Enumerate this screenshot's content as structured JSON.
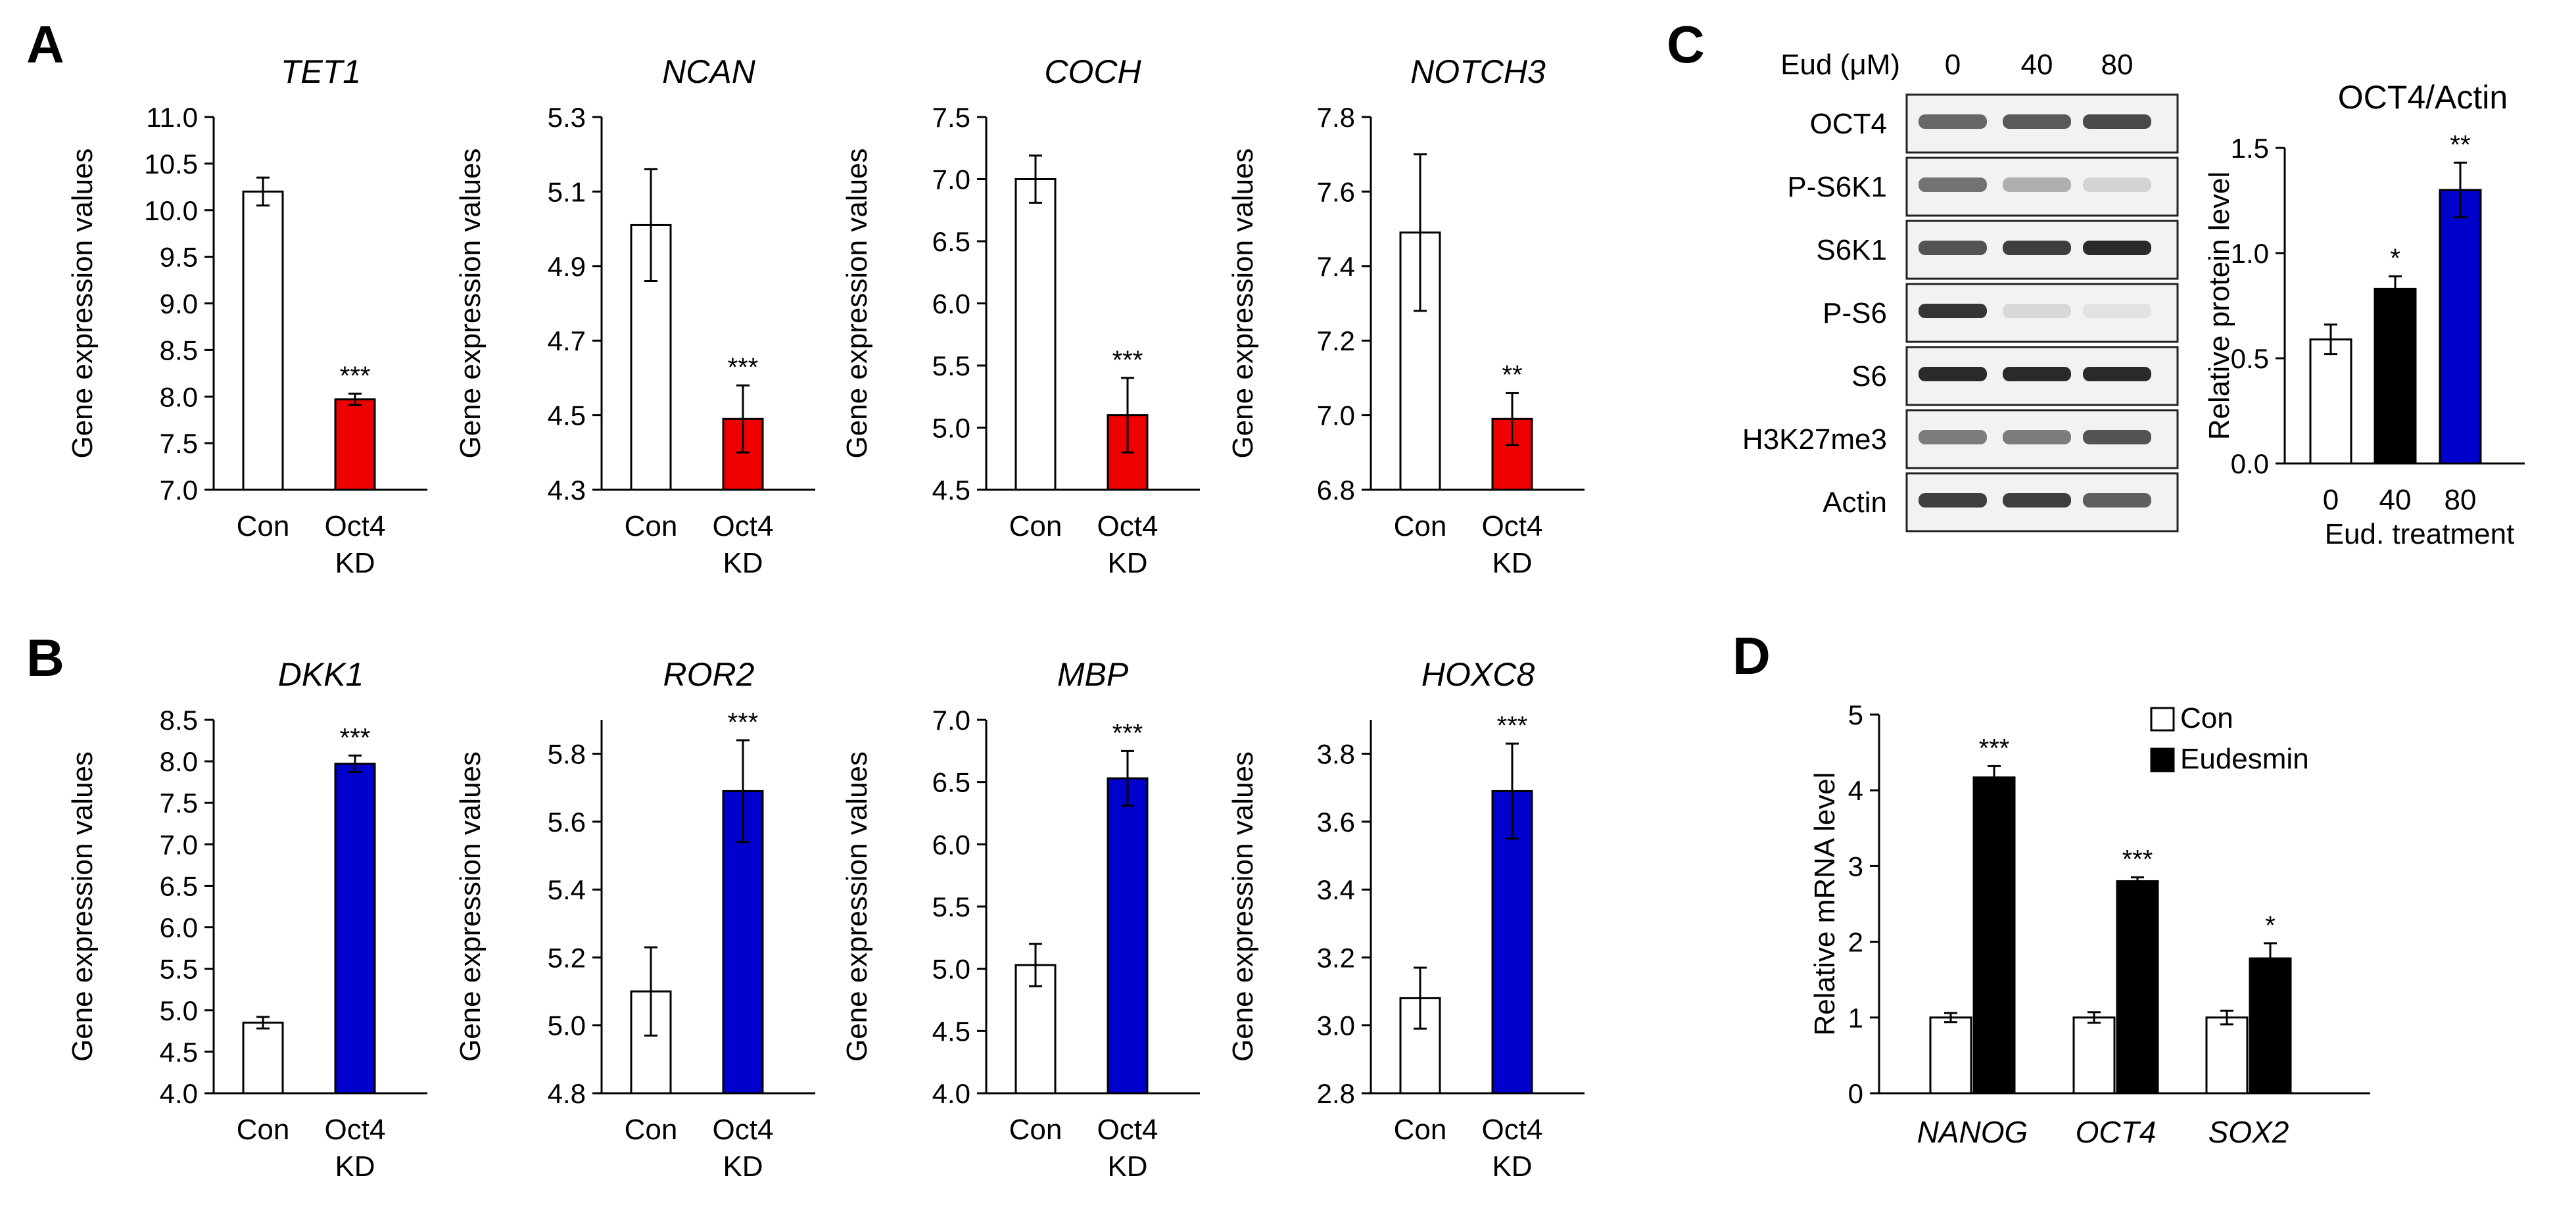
{
  "panels": {
    "A": "A",
    "B": "B",
    "C": "C",
    "D": "D"
  },
  "colors": {
    "red": "#ee0000",
    "blue": "#0000cc",
    "black": "#000000",
    "white": "#ffffff"
  },
  "chart_data": [
    {
      "id": "a1",
      "panel": "A",
      "type": "bar",
      "title": "TET1",
      "ylabel": "Gene expression values",
      "ylim": [
        7.0,
        11.0
      ],
      "yticks": [
        "7.0",
        "7.5",
        "8.0",
        "8.5",
        "9.0",
        "9.5",
        "10.0",
        "10.5",
        "11.0"
      ],
      "categories": [
        [
          "Con"
        ],
        [
          "Oct4",
          "KD"
        ]
      ],
      "values": [
        10.2,
        7.97
      ],
      "errors": [
        0.15,
        0.06
      ],
      "fills": [
        "white",
        "red"
      ],
      "sig": [
        "",
        "***"
      ]
    },
    {
      "id": "a2",
      "panel": "A",
      "type": "bar",
      "title": "NCAN",
      "ylabel": "Gene expression values",
      "ylim": [
        4.3,
        5.3
      ],
      "yticks": [
        "4.3",
        "4.5",
        "4.7",
        "4.9",
        "5.1",
        "5.3"
      ],
      "categories": [
        [
          "Con"
        ],
        [
          "Oct4",
          "KD"
        ]
      ],
      "values": [
        5.01,
        4.49
      ],
      "errors": [
        0.15,
        0.09
      ],
      "fills": [
        "white",
        "red"
      ],
      "sig": [
        "",
        "***"
      ]
    },
    {
      "id": "a3",
      "panel": "A",
      "type": "bar",
      "title": "COCH",
      "ylabel": "Gene expression values",
      "ylim": [
        4.5,
        7.5
      ],
      "yticks": [
        "4.5",
        "5.0",
        "5.5",
        "6.0",
        "6.5",
        "7.0",
        "7.5"
      ],
      "categories": [
        [
          "Con"
        ],
        [
          "Oct4",
          "KD"
        ]
      ],
      "values": [
        7.0,
        5.1
      ],
      "errors": [
        0.19,
        0.3
      ],
      "fills": [
        "white",
        "red"
      ],
      "sig": [
        "",
        "***"
      ]
    },
    {
      "id": "a4",
      "panel": "A",
      "type": "bar",
      "title": "NOTCH3",
      "ylabel": "Gene expression values",
      "ylim": [
        6.8,
        7.8
      ],
      "yticks": [
        "6.8",
        "7.0",
        "7.2",
        "7.4",
        "7.6",
        "7.8"
      ],
      "categories": [
        [
          "Con"
        ],
        [
          "Oct4",
          "KD"
        ]
      ],
      "values": [
        7.49,
        6.99
      ],
      "errors": [
        0.21,
        0.07
      ],
      "fills": [
        "white",
        "red"
      ],
      "sig": [
        "",
        "**"
      ]
    },
    {
      "id": "b1",
      "panel": "B",
      "type": "bar",
      "title": "DKK1",
      "ylabel": "Gene expression values",
      "ylim": [
        4.0,
        8.5
      ],
      "yticks": [
        "4.0",
        "4.5",
        "5.0",
        "5.5",
        "6.0",
        "6.5",
        "7.0",
        "7.5",
        "8.0",
        "8.5"
      ],
      "categories": [
        [
          "Con"
        ],
        [
          "Oct4",
          "KD"
        ]
      ],
      "values": [
        4.85,
        7.97
      ],
      "errors": [
        0.07,
        0.1
      ],
      "fills": [
        "white",
        "blue"
      ],
      "sig": [
        "",
        "***"
      ]
    },
    {
      "id": "b2",
      "panel": "B",
      "type": "bar",
      "title": "ROR2",
      "ylabel": "Gene expression values",
      "ylim": [
        4.8,
        5.9
      ],
      "yticks": [
        "4.8",
        "5.0",
        "5.2",
        "5.4",
        "5.6",
        "5.8"
      ],
      "categories": [
        [
          "Con"
        ],
        [
          "Oct4",
          "KD"
        ]
      ],
      "values": [
        5.1,
        5.69
      ],
      "errors": [
        0.13,
        0.15
      ],
      "fills": [
        "white",
        "blue"
      ],
      "sig": [
        "",
        "***"
      ]
    },
    {
      "id": "b3",
      "panel": "B",
      "type": "bar",
      "title": "MBP",
      "ylabel": "Gene expression values",
      "ylim": [
        4.0,
        7.0
      ],
      "yticks": [
        "4.0",
        "4.5",
        "5.0",
        "5.5",
        "6.0",
        "6.5",
        "7.0"
      ],
      "categories": [
        [
          "Con"
        ],
        [
          "Oct4",
          "KD"
        ]
      ],
      "values": [
        5.03,
        6.53
      ],
      "errors": [
        0.17,
        0.22
      ],
      "fills": [
        "white",
        "blue"
      ],
      "sig": [
        "",
        "***"
      ]
    },
    {
      "id": "b4",
      "panel": "B",
      "type": "bar",
      "title": "HOXC8",
      "ylabel": "Gene expression values",
      "ylim": [
        2.8,
        3.9
      ],
      "yticks": [
        "2.8",
        "3.0",
        "3.2",
        "3.4",
        "3.6",
        "3.8"
      ],
      "categories": [
        [
          "Con"
        ],
        [
          "Oct4",
          "KD"
        ]
      ],
      "values": [
        3.08,
        3.69
      ],
      "errors": [
        0.09,
        0.14
      ],
      "fills": [
        "white",
        "blue"
      ],
      "sig": [
        "",
        "***"
      ]
    },
    {
      "id": "c",
      "panel": "C",
      "type": "bar",
      "title": "OCT4/Actin",
      "ylabel": "Relative protein level",
      "xlabel": "Eud. treatment",
      "ylim": [
        0.0,
        1.5
      ],
      "yticks": [
        "0.0",
        "0.5",
        "1.0",
        "1.5"
      ],
      "categories": [
        [
          "0"
        ],
        [
          "40"
        ],
        [
          "80"
        ]
      ],
      "values": [
        0.59,
        0.83,
        1.3
      ],
      "errors": [
        0.07,
        0.06,
        0.13
      ],
      "fills": [
        "white",
        "black",
        "blue"
      ],
      "sig": [
        "",
        "*",
        "**"
      ]
    },
    {
      "id": "d",
      "panel": "D",
      "type": "bar",
      "title": "",
      "ylabel": "Relative mRNA level",
      "ylim": [
        0,
        5
      ],
      "yticks": [
        "0",
        "1",
        "2",
        "3",
        "4",
        "5"
      ],
      "categories": [
        "NANOG",
        "OCT4",
        "SOX2"
      ],
      "series": [
        {
          "name": "Con",
          "fill": "white",
          "values": [
            1.0,
            1.0,
            1.0
          ],
          "errors": [
            0.06,
            0.07,
            0.09
          ],
          "sig": [
            "",
            "",
            ""
          ]
        },
        {
          "name": "Eudesmin",
          "fill": "black",
          "values": [
            4.17,
            2.8,
            1.78
          ],
          "errors": [
            0.15,
            0.05,
            0.2
          ],
          "sig": [
            "***",
            "***",
            "*"
          ]
        }
      ]
    }
  ],
  "western_blot": {
    "header_label": "Eud (μM)",
    "doses": [
      "0",
      "40",
      "80"
    ],
    "rows": [
      {
        "label": "OCT4",
        "intensity": [
          0.65,
          0.72,
          0.8
        ]
      },
      {
        "label": "P-S6K1",
        "intensity": [
          0.6,
          0.3,
          0.12
        ]
      },
      {
        "label": "S6K1",
        "intensity": [
          0.75,
          0.85,
          0.95
        ]
      },
      {
        "label": "P-S6",
        "intensity": [
          0.9,
          0.1,
          0.05
        ]
      },
      {
        "label": "S6",
        "intensity": [
          0.95,
          0.95,
          0.95
        ]
      },
      {
        "label": "H3K27me3",
        "intensity": [
          0.55,
          0.55,
          0.75
        ]
      },
      {
        "label": "Actin",
        "intensity": [
          0.85,
          0.85,
          0.7
        ]
      }
    ]
  }
}
